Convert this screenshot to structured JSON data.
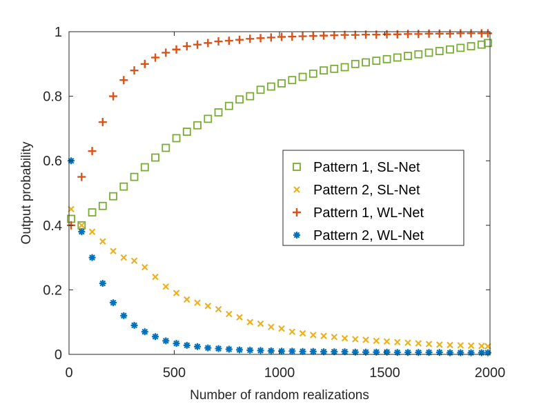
{
  "chart_data": {
    "type": "scatter",
    "title": "",
    "xlabel": "Number of random realizations",
    "ylabel": "Output probability",
    "xlim": [
      0,
      2000
    ],
    "ylim": [
      0,
      1
    ],
    "xticks": [
      0,
      500,
      1000,
      1500,
      2000
    ],
    "yticks": [
      0,
      0.2,
      0.4,
      0.6,
      0.8,
      1
    ],
    "xtick_labels": [
      "0",
      "500",
      "1000",
      "1500",
      "2000"
    ],
    "ytick_labels": [
      "0",
      "0.2",
      "0.4",
      "0.6",
      "0.8",
      "1"
    ],
    "grid": false,
    "legend_position": "center-right",
    "series": [
      {
        "name": "Pattern 1, SL-Net",
        "marker": "square",
        "color": "#77AC30",
        "x": [
          10,
          60,
          110,
          160,
          210,
          260,
          310,
          360,
          410,
          460,
          510,
          560,
          610,
          660,
          710,
          760,
          810,
          860,
          910,
          960,
          1010,
          1060,
          1110,
          1160,
          1210,
          1260,
          1310,
          1360,
          1410,
          1460,
          1510,
          1560,
          1610,
          1660,
          1710,
          1760,
          1810,
          1860,
          1910,
          1960,
          1990
        ],
        "y": [
          0.42,
          0.4,
          0.44,
          0.46,
          0.49,
          0.52,
          0.55,
          0.58,
          0.61,
          0.64,
          0.67,
          0.69,
          0.71,
          0.73,
          0.75,
          0.77,
          0.79,
          0.8,
          0.82,
          0.83,
          0.84,
          0.85,
          0.86,
          0.87,
          0.88,
          0.885,
          0.89,
          0.9,
          0.905,
          0.91,
          0.915,
          0.92,
          0.925,
          0.93,
          0.935,
          0.94,
          0.945,
          0.95,
          0.955,
          0.96,
          0.965
        ]
      },
      {
        "name": "Pattern 2, SL-Net",
        "marker": "x",
        "color": "#EDB120",
        "x": [
          10,
          60,
          110,
          160,
          210,
          260,
          310,
          360,
          410,
          460,
          510,
          560,
          610,
          660,
          710,
          760,
          810,
          860,
          910,
          960,
          1010,
          1060,
          1110,
          1160,
          1210,
          1260,
          1310,
          1360,
          1410,
          1460,
          1510,
          1560,
          1610,
          1660,
          1710,
          1760,
          1810,
          1860,
          1910,
          1960,
          1990
        ],
        "y": [
          0.45,
          0.4,
          0.38,
          0.35,
          0.32,
          0.3,
          0.29,
          0.27,
          0.24,
          0.21,
          0.19,
          0.17,
          0.16,
          0.15,
          0.14,
          0.125,
          0.115,
          0.1,
          0.095,
          0.085,
          0.08,
          0.07,
          0.065,
          0.06,
          0.057,
          0.054,
          0.05,
          0.047,
          0.045,
          0.042,
          0.04,
          0.038,
          0.036,
          0.034,
          0.032,
          0.03,
          0.029,
          0.028,
          0.027,
          0.026,
          0.025
        ]
      },
      {
        "name": "Pattern 1, WL-Net",
        "marker": "plus",
        "color": "#D95319",
        "x": [
          10,
          60,
          110,
          160,
          210,
          260,
          310,
          360,
          410,
          460,
          510,
          560,
          610,
          660,
          710,
          760,
          810,
          860,
          910,
          960,
          1010,
          1060,
          1110,
          1160,
          1210,
          1260,
          1310,
          1360,
          1410,
          1460,
          1510,
          1560,
          1610,
          1660,
          1710,
          1760,
          1810,
          1860,
          1910,
          1960,
          1990
        ],
        "y": [
          0.4,
          0.55,
          0.63,
          0.72,
          0.8,
          0.85,
          0.88,
          0.9,
          0.92,
          0.935,
          0.945,
          0.955,
          0.96,
          0.965,
          0.97,
          0.972,
          0.975,
          0.978,
          0.98,
          0.982,
          0.984,
          0.985,
          0.986,
          0.987,
          0.988,
          0.989,
          0.99,
          0.99,
          0.991,
          0.991,
          0.992,
          0.992,
          0.993,
          0.993,
          0.994,
          0.994,
          0.994,
          0.995,
          0.995,
          0.995,
          0.995
        ]
      },
      {
        "name": "Pattern 2, WL-Net",
        "marker": "asterisk",
        "color": "#0072BD",
        "x": [
          10,
          60,
          110,
          160,
          210,
          260,
          310,
          360,
          410,
          460,
          510,
          560,
          610,
          660,
          710,
          760,
          810,
          860,
          910,
          960,
          1010,
          1060,
          1110,
          1160,
          1210,
          1260,
          1310,
          1360,
          1410,
          1460,
          1510,
          1560,
          1610,
          1660,
          1710,
          1760,
          1810,
          1860,
          1910,
          1960,
          1990
        ],
        "y": [
          0.6,
          0.38,
          0.3,
          0.22,
          0.16,
          0.12,
          0.09,
          0.07,
          0.055,
          0.042,
          0.034,
          0.028,
          0.024,
          0.02,
          0.018,
          0.016,
          0.014,
          0.013,
          0.012,
          0.011,
          0.01,
          0.01,
          0.009,
          0.009,
          0.008,
          0.008,
          0.008,
          0.007,
          0.007,
          0.007,
          0.007,
          0.006,
          0.006,
          0.006,
          0.006,
          0.006,
          0.005,
          0.005,
          0.005,
          0.005,
          0.005
        ]
      }
    ]
  }
}
